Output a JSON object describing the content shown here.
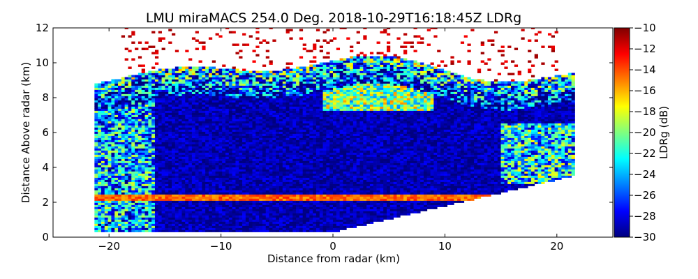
{
  "chart_data": {
    "type": "heatmap",
    "title": "LMU miraMACS 254.0 Deg. 2018-10-29T16:18:45Z  LDRg",
    "xlabel": "Distance from radar (km)",
    "ylabel": "Distance Above radar  (km)",
    "xlim": [
      -25,
      25
    ],
    "ylim": [
      0,
      12
    ],
    "x_ticks": [
      -20,
      -10,
      0,
      10,
      20
    ],
    "y_ticks": [
      0,
      2,
      4,
      6,
      8,
      10,
      12
    ],
    "x_tick_labels": [
      "−20",
      "−10",
      "0",
      "10",
      "20"
    ],
    "y_tick_labels": [
      "0",
      "2",
      "4",
      "6",
      "8",
      "10",
      "12"
    ],
    "grid": false,
    "colorbar": {
      "label": "LDRg (dB)",
      "range": [
        -30,
        -10
      ],
      "ticks": [
        -30,
        -28,
        -26,
        -24,
        -22,
        -20,
        -18,
        -16,
        -14,
        -12,
        -10
      ],
      "tick_labels": [
        "−30",
        "−28",
        "−26",
        "−24",
        "−22",
        "−20",
        "−18",
        "−16",
        "−14",
        "−12",
        "−10"
      ],
      "colormap": "jet",
      "colors": [
        "#00007f",
        "#0000ff",
        "#007fff",
        "#00ffff",
        "#7fff7f",
        "#ffff00",
        "#ff7f00",
        "#ff0000",
        "#7f0000"
      ]
    },
    "regions": [
      {
        "name": "cloud-body-left",
        "x_range": [
          -21,
          0
        ],
        "y_range": [
          2.5,
          9
        ],
        "ldr_db": -29
      },
      {
        "name": "cloud-body-right",
        "x_range": [
          0,
          21
        ],
        "y_range": [
          3,
          7.5
        ],
        "ldr_db": -28.5
      },
      {
        "name": "cloud-top-edge",
        "x_range": [
          -20,
          21
        ],
        "y_range": [
          8.5,
          10.5
        ],
        "ldr_db": -19
      },
      {
        "name": "melting-layer",
        "x_range": [
          -22,
          15
        ],
        "y_range": [
          2.1,
          2.4
        ],
        "ldr_db": -14
      },
      {
        "name": "rain-below",
        "x_range": [
          -22,
          12
        ],
        "y_range": [
          0.3,
          2.1
        ],
        "ldr_db": -29
      },
      {
        "name": "sparse-top",
        "x_range": [
          -19,
          20
        ],
        "y_range": [
          10.5,
          12
        ],
        "ldr_db": -11
      }
    ]
  }
}
